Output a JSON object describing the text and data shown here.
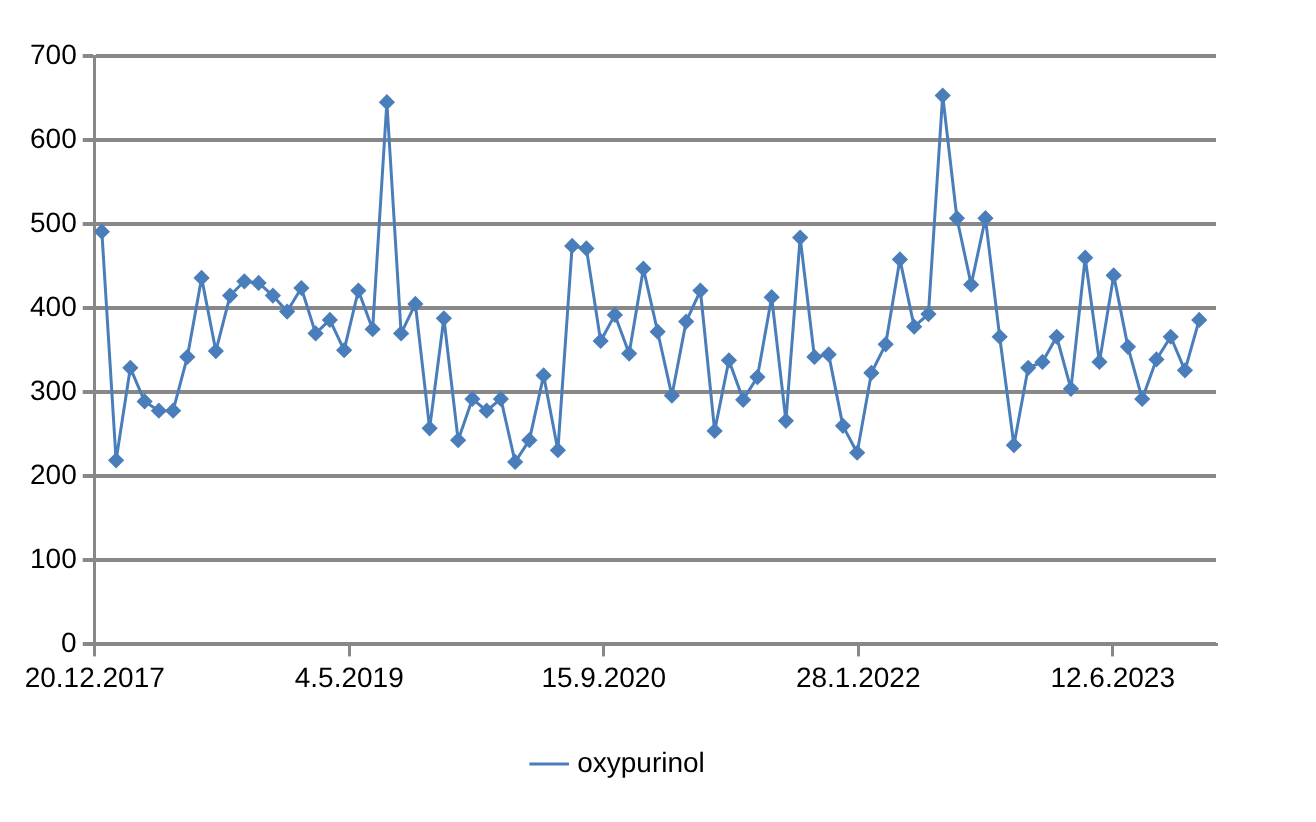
{
  "chart_data": {
    "type": "line",
    "x": [
      "2018-01-03",
      "2018-01-31",
      "2018-02-28",
      "2018-03-28",
      "2018-04-25",
      "2018-05-23",
      "2018-06-20",
      "2018-07-18",
      "2018-08-15",
      "2018-09-12",
      "2018-10-10",
      "2018-11-07",
      "2018-12-05",
      "2019-01-02",
      "2019-01-30",
      "2019-02-27",
      "2019-03-27",
      "2019-04-24",
      "2019-05-22",
      "2019-06-19",
      "2019-07-17",
      "2019-08-14",
      "2019-09-11",
      "2019-10-09",
      "2019-11-06",
      "2019-12-04",
      "2020-01-01",
      "2020-01-29",
      "2020-02-26",
      "2020-03-25",
      "2020-04-22",
      "2020-05-20",
      "2020-06-17",
      "2020-07-15",
      "2020-08-12",
      "2020-09-09",
      "2020-10-07",
      "2020-11-04",
      "2020-12-02",
      "2020-12-30",
      "2021-01-27",
      "2021-02-24",
      "2021-03-24",
      "2021-04-21",
      "2021-05-19",
      "2021-06-16",
      "2021-07-14",
      "2021-08-11",
      "2021-09-08",
      "2021-10-06",
      "2021-11-03",
      "2021-12-01",
      "2021-12-29",
      "2022-01-26",
      "2022-02-23",
      "2022-03-23",
      "2022-04-20",
      "2022-05-18",
      "2022-06-15",
      "2022-07-13",
      "2022-08-10",
      "2022-09-07",
      "2022-10-05",
      "2022-11-02",
      "2022-11-30",
      "2022-12-28",
      "2023-01-25",
      "2023-02-22",
      "2023-03-22",
      "2023-04-19",
      "2023-05-17",
      "2023-06-14",
      "2023-07-12",
      "2023-08-09",
      "2023-09-06",
      "2023-10-04",
      "2023-11-01",
      "2023-11-29"
    ],
    "series": [
      {
        "name": "oxypurinol",
        "color": "#4a7ebb",
        "values": [
          491,
          219,
          329,
          289,
          278,
          278,
          342,
          436,
          349,
          415,
          432,
          430,
          415,
          396,
          424,
          370,
          386,
          350,
          421,
          375,
          645,
          370,
          405,
          257,
          388,
          243,
          292,
          278,
          292,
          217,
          243,
          320,
          231,
          474,
          471,
          361,
          392,
          346,
          447,
          372,
          296,
          384,
          421,
          254,
          338,
          291,
          318,
          413,
          266,
          484,
          342,
          345,
          260,
          228,
          323,
          357,
          458,
          378,
          393,
          653,
          507,
          428,
          507,
          366,
          237,
          329,
          336,
          366,
          304,
          460,
          336,
          439,
          354,
          292,
          339,
          366,
          326,
          386
        ]
      }
    ],
    "xlim": [
      "2017-12-20",
      "2024-01-01"
    ],
    "xticks": [
      {
        "value": "2017-12-20",
        "label": "20.12.2017"
      },
      {
        "value": "2019-05-04",
        "label": "4.5.2019"
      },
      {
        "value": "2020-09-15",
        "label": "15.9.2020"
      },
      {
        "value": "2022-01-28",
        "label": "28.1.2022"
      },
      {
        "value": "2023-06-12",
        "label": "12.6.2023"
      }
    ],
    "ylim": [
      0,
      700
    ],
    "yticks": [
      0,
      100,
      200,
      300,
      400,
      500,
      600,
      700
    ],
    "grid": "y",
    "legend": "bottom",
    "marker": "diamond",
    "line_style": "solid"
  }
}
